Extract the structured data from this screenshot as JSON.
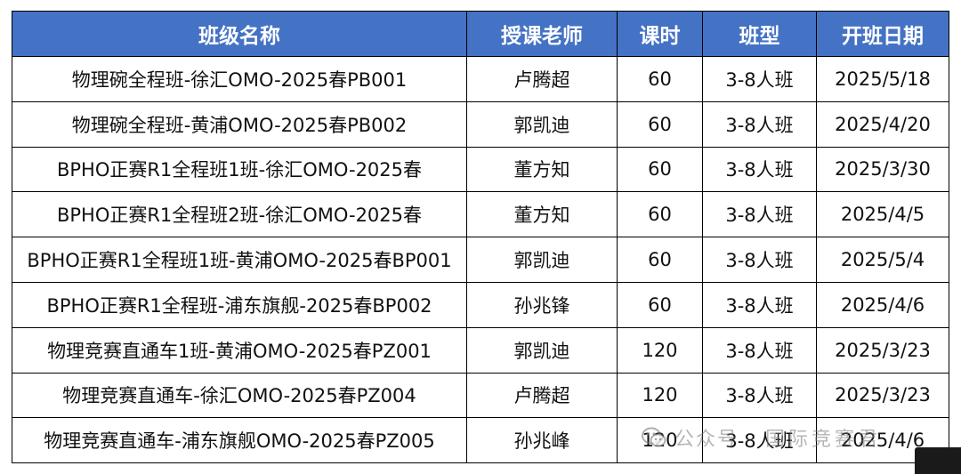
{
  "table": {
    "headers": [
      "班级名称",
      "授课老师",
      "课时",
      "班型",
      "开班日期"
    ],
    "rows": [
      [
        "物理碗全程班-徐汇OMO-2025春PB001",
        "卢腾超",
        "60",
        "3-8人班",
        "2025/5/18"
      ],
      [
        "物理碗全程班-黄浦OMO-2025春PB002",
        "郭凯迪",
        "60",
        "3-8人班",
        "2025/4/20"
      ],
      [
        "BPHO正赛R1全程班1班-徐汇OMO-2025春",
        "董方知",
        "60",
        "3-8人班",
        "2025/3/30"
      ],
      [
        "BPHO正赛R1全程班2班-徐汇OMO-2025春",
        "董方知",
        "60",
        "3-8人班",
        "2025/4/5"
      ],
      [
        "BPHO正赛R1全程班1班-黄浦OMO-2025春BP001",
        "郭凯迪",
        "60",
        "3-8人班",
        "2025/5/4"
      ],
      [
        "BPHO正赛R1全程班-浦东旗舰-2025春BP002",
        "孙兆锋",
        "60",
        "3-8人班",
        "2025/4/6"
      ],
      [
        "物理竞赛直通车1班-黄浦OMO-2025春PZ001",
        "郭凯迪",
        "120",
        "3-8人班",
        "2025/3/23"
      ],
      [
        "物理竞赛直通车-徐汇OMO-2025春PZ004",
        "卢腾超",
        "120",
        "3-8人班",
        "2025/3/23"
      ],
      [
        "物理竞赛直通车-浦东旗舰OMO-2025春PZ005",
        "孙兆峰",
        "120",
        "3-8人班",
        "2025/4/6"
      ]
    ]
  },
  "watermark": {
    "text_1": "公众号",
    "text_2": "国际竞赛君",
    "icon": "wechat-icon"
  },
  "colors": {
    "header_bg": "#4472c4",
    "header_text": "#ffffff",
    "border": "#000000"
  }
}
